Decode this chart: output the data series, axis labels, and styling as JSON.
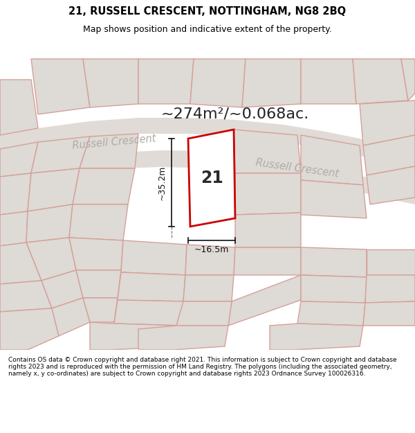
{
  "title": "21, RUSSELL CRESCENT, NOTTINGHAM, NG8 2BQ",
  "subtitle": "Map shows position and indicative extent of the property.",
  "area_text": "~274m²/~0.068ac.",
  "street_name1": "Russell Crescent",
  "street_name2": "Russell Crescent",
  "plot_number": "21",
  "dim_width": "~16.5m",
  "dim_height": "~35.2m",
  "footer": "Contains OS data © Crown copyright and database right 2021. This information is subject to Crown copyright and database rights 2023 and is reproduced with the permission of HM Land Registry. The polygons (including the associated geometry, namely x, y co-ordinates) are subject to Crown copyright and database rights 2023 Ordnance Survey 100026316.",
  "bg_color": "#f0ede8",
  "map_bg": "#e8e4e0",
  "plot_fill": "#ffffff",
  "plot_edge": "#cc0000",
  "other_plots_edge": "#d4a098",
  "other_plots_fill": "#dedad6",
  "road_fill": "#e8e4e0",
  "title_color": "#000000",
  "footer_color": "#000000",
  "street_color": "#b0aba5",
  "dim_color": "#111111"
}
